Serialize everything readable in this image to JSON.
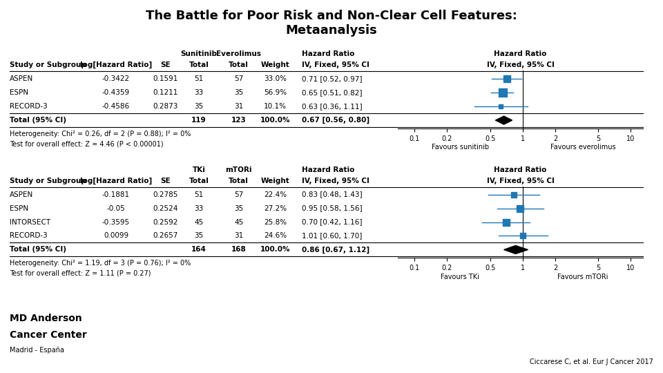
{
  "title": "The Battle for Poor Risk and Non-Clear Cell Features:",
  "subtitle": "Metaanalysis",
  "logo_text": [
    "MD Anderson",
    "Cancer Center",
    "Madrid - España"
  ],
  "citation": "Ciccarese C, et al. Eur J Cancer 2017",
  "chart_data": [
    {
      "type": "forest",
      "categories": [
        "ASPEN",
        "ESPN",
        "RECORD-3"
      ],
      "values": [
        0.71,
        0.65,
        0.63
      ],
      "lo": [
        0.52,
        0.51,
        0.36
      ],
      "hi": [
        0.97,
        0.82,
        1.11
      ],
      "weights": [
        33.0,
        56.9,
        10.1
      ],
      "total": {
        "label": "Total (95% CI)",
        "value": 0.67,
        "lo": 0.56,
        "hi": 0.8
      },
      "table": {
        "columns": [
          "Study or Subgroup",
          "log[Hazard Ratio]",
          "SE",
          "Total",
          "Total",
          "Weight"
        ],
        "groups": [
          "Sunitinib",
          "Everolimus"
        ],
        "effect_header": [
          "Hazard Ratio",
          "IV, Fixed, 95% CI"
        ],
        "rows": [
          [
            "-0.3422",
            "0.1591",
            "51",
            "57",
            "33.0%",
            "0.71 [0.52, 0.97]"
          ],
          [
            "-0.4359",
            "0.1211",
            "33",
            "35",
            "56.9%",
            "0.65 [0.51, 0.82]"
          ],
          [
            "-0.4586",
            "0.2873",
            "35",
            "31",
            "10.1%",
            "0.63 [0.36, 1.11]"
          ]
        ],
        "total_row": [
          "119",
          "123",
          "100.0%",
          "0.67 [0.56, 0.80]"
        ]
      },
      "notes": [
        "Heterogeneity: Chi² = 0.26, df = 2 (P = 0.88); I² = 0%",
        "Test for overall effect: Z = 4.46 (P < 0.00001)"
      ],
      "favours": [
        "Favours sunitinib",
        "Favours everolimus"
      ],
      "reference_line": 1,
      "log": "x",
      "xlim": [
        0.07,
        13
      ],
      "xticks": [
        0.1,
        0.2,
        0.5,
        1,
        2,
        5,
        10
      ]
    },
    {
      "type": "forest",
      "categories": [
        "ASPEN",
        "ESPN",
        "INTORSECT",
        "RECORD-3"
      ],
      "values": [
        0.83,
        0.95,
        0.7,
        1.01
      ],
      "lo": [
        0.48,
        0.58,
        0.42,
        0.6
      ],
      "hi": [
        1.43,
        1.56,
        1.16,
        1.7
      ],
      "weights": [
        22.4,
        27.2,
        25.8,
        24.6
      ],
      "total": {
        "label": "Total (95% CI)",
        "value": 0.86,
        "lo": 0.67,
        "hi": 1.12
      },
      "table": {
        "columns": [
          "Study or Subgroup",
          "log[Hazard Ratio]",
          "SE",
          "Total",
          "Total",
          "Weight"
        ],
        "groups": [
          "TKi",
          "mTORi"
        ],
        "effect_header": [
          "Hazard Ratio",
          "IV, Fixed, 95% CI"
        ],
        "rows": [
          [
            "-0.1881",
            "0.2785",
            "51",
            "57",
            "22.4%",
            "0.83 [0.48, 1.43]"
          ],
          [
            "-0.05",
            "0.2524",
            "33",
            "35",
            "27.2%",
            "0.95 [0.58, 1.56]"
          ],
          [
            "-0.3595",
            "0.2592",
            "45",
            "45",
            "25.8%",
            "0.70 [0.42, 1.16]"
          ],
          [
            "0.0099",
            "0.2657",
            "35",
            "31",
            "24.6%",
            "1.01 [0.60, 1.70]"
          ]
        ],
        "total_row": [
          "164",
          "168",
          "100.0%",
          "0.86 [0.67, 1.12]"
        ]
      },
      "notes": [
        "Heterogeneity: Chi² = 1.19, df = 3 (P = 0.76); I² = 0%",
        "Test for overall effect: Z = 1.11 (P = 0.27)"
      ],
      "favours": [
        "Favours TKi",
        "Favours mTORi"
      ],
      "reference_line": 1,
      "log": "x",
      "xlim": [
        0.07,
        13
      ],
      "xticks": [
        0.1,
        0.2,
        0.5,
        1,
        2,
        5,
        10
      ]
    }
  ]
}
